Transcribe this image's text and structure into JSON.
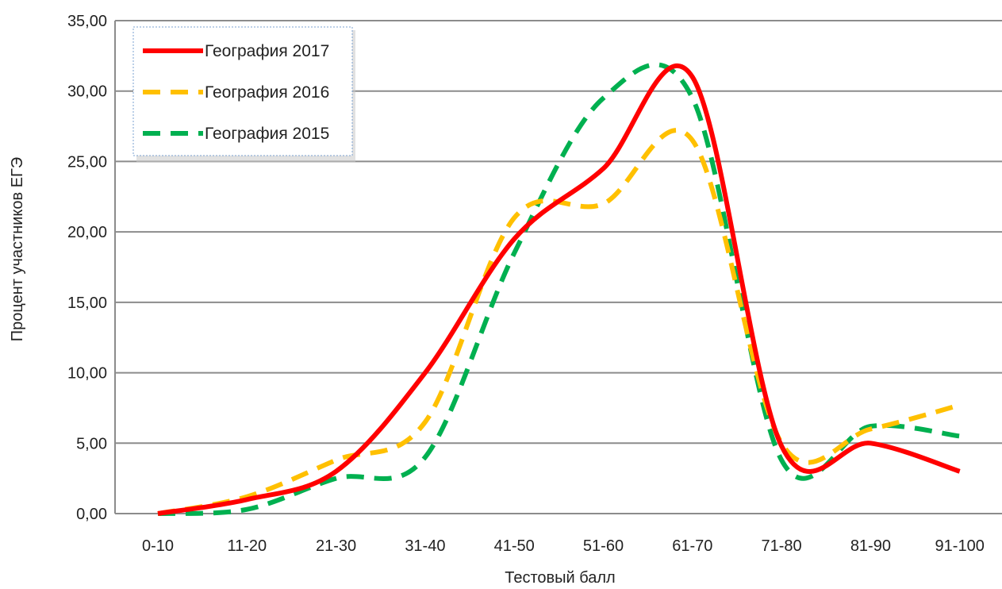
{
  "chart_data": {
    "type": "line",
    "xlabel": "Тестовый балл",
    "ylabel": "Процент участников ЕГЭ",
    "ylim": [
      0,
      35
    ],
    "yticks": [
      "0,00",
      "5,00",
      "10,00",
      "15,00",
      "20,00",
      "25,00",
      "30,00",
      "35,00"
    ],
    "categories": [
      "0-10",
      "11-20",
      "21-30",
      "31-40",
      "41-50",
      "51-60",
      "61-70",
      "71-80",
      "81-90",
      "91-100"
    ],
    "grid": true,
    "legend_position": "top-left",
    "series": [
      {
        "name": "География 2017",
        "color": "#ff0000",
        "dash": "solid",
        "values": [
          0,
          1.0,
          3.0,
          10.0,
          19.5,
          24.5,
          31.0,
          4.8,
          5.0,
          3.0
        ]
      },
      {
        "name": "География 2016",
        "color": "#ffc000",
        "dash": "dashed",
        "values": [
          0,
          1.2,
          3.8,
          6.5,
          21.0,
          22.0,
          26.5,
          5.0,
          6.0,
          7.7
        ]
      },
      {
        "name": "География 2015",
        "color": "#00b050",
        "dash": "dashed",
        "values": [
          0,
          0.3,
          2.5,
          4.0,
          18.5,
          29.5,
          29.5,
          3.8,
          6.2,
          5.5
        ]
      }
    ]
  }
}
